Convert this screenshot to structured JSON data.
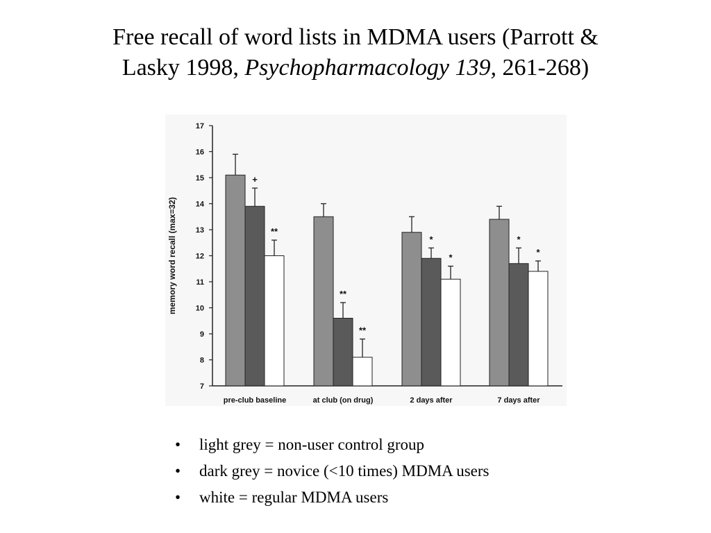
{
  "slide": {
    "title_line1": "Free recall of word lists in MDMA users (Parrott &",
    "title_line2_a": "Lasky 1998, ",
    "title_line2_b": "Psychopharmacology 139,",
    "title_line2_c": " 261-268)"
  },
  "legend": {
    "bullet": "•",
    "items": [
      "light grey = non-user control group",
      "dark grey = novice (<10 times) MDMA users",
      "white = regular MDMA users"
    ]
  },
  "chart_data": {
    "type": "bar",
    "ylabel": "memory word recall (max=32)",
    "xlabel": "",
    "ylim": [
      7,
      17
    ],
    "yticks": [
      7,
      8,
      9,
      10,
      11,
      12,
      13,
      14,
      15,
      16,
      17
    ],
    "categories": [
      "pre-club baseline",
      "at club (on drug)",
      "2 days after",
      "7 days after"
    ],
    "series": [
      {
        "color": "#8e8e8e",
        "values": [
          15.1,
          13.5,
          12.9,
          13.4
        ],
        "error": [
          0.8,
          0.5,
          0.6,
          0.5
        ],
        "marks": [
          "",
          "",
          "",
          ""
        ]
      },
      {
        "color": "#5a5a5a",
        "values": [
          13.9,
          9.6,
          11.9,
          11.7
        ],
        "error": [
          0.7,
          0.6,
          0.4,
          0.6
        ],
        "marks": [
          "+",
          "**",
          "*",
          "*"
        ]
      },
      {
        "color": "#ffffff",
        "values": [
          12.0,
          8.1,
          11.1,
          11.4
        ],
        "error": [
          0.6,
          0.7,
          0.5,
          0.4
        ],
        "marks": [
          "**",
          "**",
          "*",
          "*"
        ]
      }
    ],
    "grid": false,
    "legend_position": "below"
  }
}
